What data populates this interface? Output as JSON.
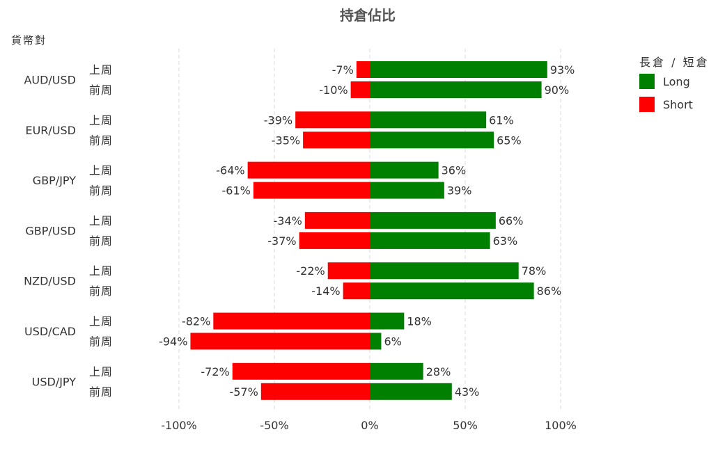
{
  "chart_data": {
    "type": "bar",
    "orientation": "horizontal",
    "stacking": "diverging",
    "title": "持倉佔比",
    "ylabel": "貨幣對",
    "categories": [
      "AUD/USD",
      "EUR/USD",
      "GBP/JPY",
      "GBP/USD",
      "NZD/USD",
      "USD/CAD",
      "USD/JPY"
    ],
    "periods": [
      "上周",
      "前周"
    ],
    "xlim": [
      -100,
      100
    ],
    "xticks": [
      -100,
      -50,
      0,
      50,
      100
    ],
    "xtick_labels": [
      "-100%",
      "-50%",
      "0%",
      "50%",
      "100%"
    ],
    "grid": true,
    "legend": {
      "title": "長倉 / 短倉",
      "position": "top-right"
    },
    "series": [
      {
        "name": "Long",
        "color": "#008000",
        "values": [
          [
            93,
            90
          ],
          [
            61,
            65
          ],
          [
            36,
            39
          ],
          [
            66,
            63
          ],
          [
            78,
            86
          ],
          [
            18,
            6
          ],
          [
            28,
            43
          ]
        ]
      },
      {
        "name": "Short",
        "color": "#ff0000",
        "values": [
          [
            -7,
            -10
          ],
          [
            -39,
            -35
          ],
          [
            -64,
            -61
          ],
          [
            -34,
            -37
          ],
          [
            -22,
            -14
          ],
          [
            -82,
            -94
          ],
          [
            -72,
            -57
          ]
        ]
      }
    ]
  }
}
